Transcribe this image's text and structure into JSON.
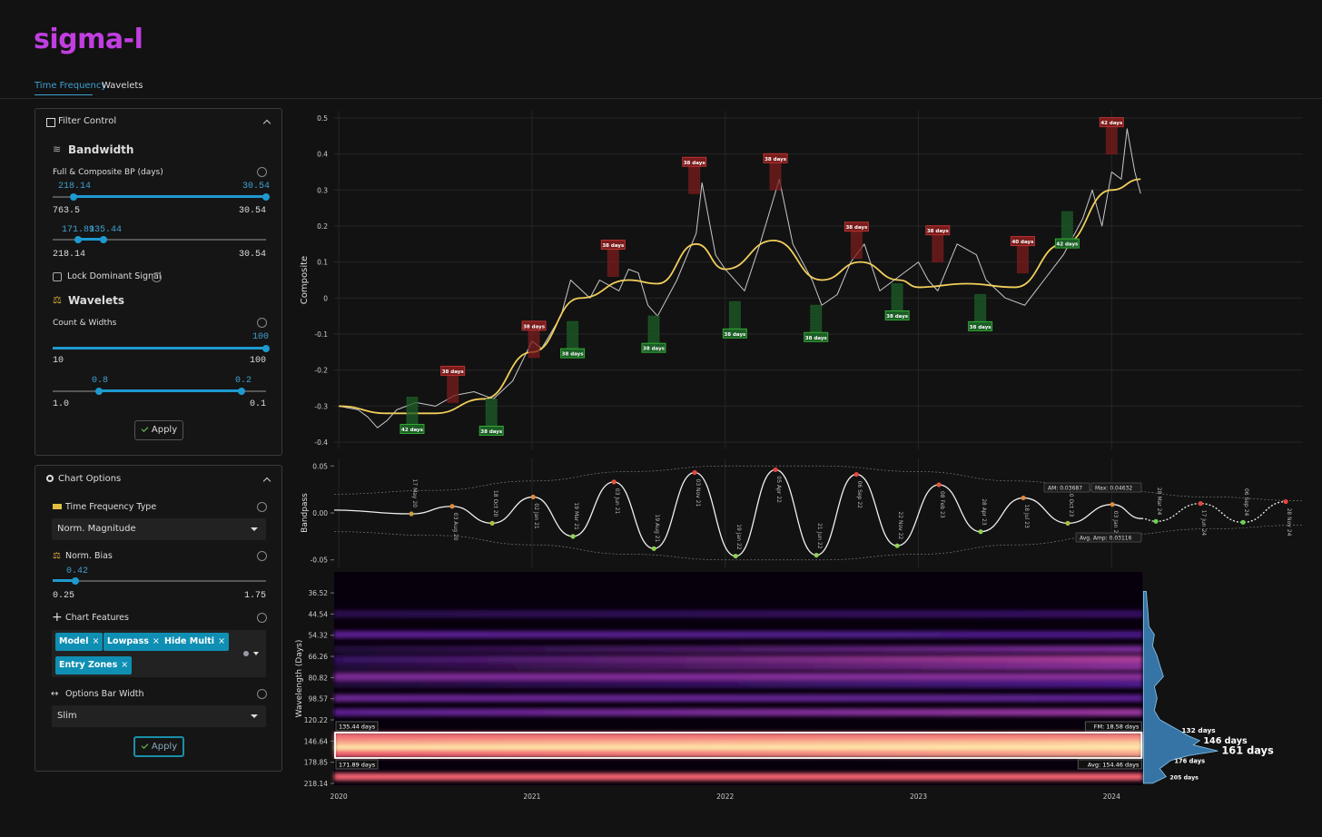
{
  "header": {
    "title": "sigma-l",
    "tabs": [
      "Time Frequency",
      "Wavelets"
    ]
  },
  "filter_control": {
    "title": "Filter Control",
    "bandwidth": {
      "heading": "Bandwidth",
      "label": "Full & Composite BP (days)",
      "slider1": {
        "low": "218.14",
        "high": "30.54",
        "min": "763.5",
        "max": "30.54"
      },
      "slider2": {
        "low": "171.89",
        "high": "135.44",
        "min": "218.14",
        "max": "30.54"
      }
    },
    "lock": "Lock Dominant Signal",
    "wavelets": {
      "heading": "Wavelets",
      "label": "Count & Widths",
      "slider1": {
        "value": "100",
        "min": "10",
        "max": "100"
      },
      "slider2": {
        "low": "0.8",
        "high": "0.2",
        "min": "1.0",
        "max": "0.1"
      }
    },
    "apply": "Apply"
  },
  "chart_options": {
    "title": "Chart Options",
    "tf_type": {
      "label": "Time Frequency Type",
      "value": "Norm. Magnitude"
    },
    "bias": {
      "label": "Norm. Bias",
      "value": "0.42",
      "min": "0.25",
      "max": "1.75"
    },
    "features": {
      "label": "Chart Features",
      "tags": [
        "Model",
        "Lowpass",
        "Hide Multi",
        "Entry Zones"
      ]
    },
    "bar_width": {
      "label": "Options Bar Width",
      "value": "Slim"
    },
    "apply": "Apply"
  },
  "chart_data": [
    {
      "type": "line",
      "ylabel": "Composite",
      "xlim": [
        2019.976,
        2024.99
      ],
      "ylim": [
        -0.42,
        0.52
      ],
      "yticks": [
        0.5,
        0.4,
        0.3,
        0.2,
        0.1,
        0,
        -0.1,
        -0.2,
        -0.3,
        -0.4
      ],
      "xticks": [
        2020,
        2021,
        2022,
        2023,
        2024
      ],
      "series": [
        {
          "color": "#c8c8c8",
          "x": [
            2020.0,
            2020.1,
            2020.15,
            2020.2,
            2020.25,
            2020.3,
            2020.4,
            2020.5,
            2020.6,
            2020.7,
            2020.8,
            2020.9,
            2021.0,
            2021.05,
            2021.15,
            2021.2,
            2021.3,
            2021.35,
            2021.45,
            2021.5,
            2021.55,
            2021.6,
            2021.65,
            2021.75,
            2021.85,
            2021.88,
            2021.95,
            2022.0,
            2022.1,
            2022.18,
            2022.28,
            2022.35,
            2022.45,
            2022.5,
            2022.58,
            2022.65,
            2022.72,
            2022.8,
            2022.9,
            2023.0,
            2023.05,
            2023.1,
            2023.2,
            2023.3,
            2023.35,
            2023.45,
            2023.55,
            2023.65,
            2023.75,
            2023.85,
            2023.9,
            2023.95,
            2024.0,
            2024.05,
            2024.08,
            2024.12,
            2024.15
          ],
          "values": [
            -0.3,
            -0.31,
            -0.33,
            -0.36,
            -0.34,
            -0.31,
            -0.29,
            -0.3,
            -0.27,
            -0.26,
            -0.28,
            -0.23,
            -0.12,
            -0.14,
            -0.05,
            0.05,
            0.0,
            0.05,
            0.02,
            0.08,
            0.07,
            -0.02,
            -0.05,
            0.05,
            0.18,
            0.32,
            0.12,
            0.08,
            0.02,
            0.15,
            0.33,
            0.15,
            0.05,
            -0.02,
            0.01,
            0.1,
            0.15,
            0.02,
            0.06,
            0.1,
            0.05,
            0.02,
            0.15,
            0.12,
            0.05,
            0.0,
            -0.02,
            0.05,
            0.12,
            0.22,
            0.3,
            0.2,
            0.35,
            0.33,
            0.47,
            0.35,
            0.29
          ]
        },
        {
          "color": "#f2cf5b",
          "x": [
            2020.0,
            2020.25,
            2020.5,
            2020.75,
            2021.0,
            2021.25,
            2021.5,
            2021.65,
            2021.85,
            2022.0,
            2022.25,
            2022.5,
            2022.7,
            2022.9,
            2023.0,
            2023.25,
            2023.5,
            2023.75,
            2024.0,
            2024.15
          ],
          "values": [
            -0.3,
            -0.32,
            -0.32,
            -0.28,
            -0.15,
            0.0,
            0.05,
            0.04,
            0.15,
            0.08,
            0.16,
            0.05,
            0.1,
            0.05,
            0.03,
            0.04,
            0.03,
            0.15,
            0.3,
            0.33
          ]
        }
      ],
      "cycles": [
        {
          "x": 2020.59,
          "y": -0.29,
          "label": "38 days",
          "side": "above",
          "color": "#7a1c1c"
        },
        {
          "x": 2021.01,
          "y": -0.165,
          "label": "38 days",
          "side": "above",
          "color": "#7a1c1c"
        },
        {
          "x": 2021.42,
          "y": 0.06,
          "label": "38 days",
          "side": "above",
          "color": "#7a1c1c"
        },
        {
          "x": 2021.84,
          "y": 0.29,
          "label": "38 days",
          "side": "above",
          "color": "#7a1c1c"
        },
        {
          "x": 2022.26,
          "y": 0.3,
          "label": "38 days",
          "side": "above",
          "color": "#7a1c1c"
        },
        {
          "x": 2022.68,
          "y": 0.11,
          "label": "38 days",
          "side": "above",
          "color": "#7a1c1c"
        },
        {
          "x": 2023.1,
          "y": 0.1,
          "label": "38 days",
          "side": "above",
          "color": "#7a1c1c"
        },
        {
          "x": 2023.54,
          "y": 0.07,
          "label": "40 days",
          "side": "above",
          "color": "#7a1c1c"
        },
        {
          "x": 2024.0,
          "y": 0.4,
          "label": "42 days",
          "side": "above",
          "color": "#7a1c1c"
        },
        {
          "x": 2020.38,
          "y": -0.275,
          "label": "42 days",
          "side": "below",
          "color": "#1c5e27"
        },
        {
          "x": 2020.79,
          "y": -0.28,
          "label": "38 days",
          "side": "below",
          "color": "#1c5e27"
        },
        {
          "x": 2021.21,
          "y": -0.065,
          "label": "38 days",
          "side": "below",
          "color": "#1c5e27"
        },
        {
          "x": 2021.63,
          "y": -0.05,
          "label": "38 days",
          "side": "below",
          "color": "#1c5e27"
        },
        {
          "x": 2022.05,
          "y": -0.01,
          "label": "38 days",
          "side": "below",
          "color": "#1c5e27"
        },
        {
          "x": 2022.47,
          "y": -0.02,
          "label": "38 days",
          "side": "below",
          "color": "#1c5e27"
        },
        {
          "x": 2022.89,
          "y": 0.04,
          "label": "38 days",
          "side": "below",
          "color": "#1c5e27"
        },
        {
          "x": 2023.32,
          "y": 0.01,
          "label": "38 days",
          "side": "below",
          "color": "#1c5e27"
        },
        {
          "x": 2023.77,
          "y": 0.24,
          "label": "42 days",
          "side": "below",
          "color": "#1c5e27"
        }
      ]
    },
    {
      "type": "line",
      "ylabel": "Bandpass",
      "xlim": [
        2019.976,
        2024.99
      ],
      "ylim": [
        -0.058,
        0.058
      ],
      "yticks": [
        0.05,
        {
          "value": 0,
          "label": "0.00"
        },
        -0.05
      ],
      "xticks": [
        2020,
        2021,
        2022,
        2023,
        2024
      ],
      "series": [
        {
          "color": "#f0f0f0",
          "dashed": false,
          "x": [
            2019.976,
            2020.376,
            2020.587,
            2020.794,
            2021.006,
            2021.212,
            2021.424,
            2021.631,
            2021.842,
            2022.054,
            2022.26,
            2022.472,
            2022.679,
            2022.89,
            2023.106,
            2023.322,
            2023.543,
            2023.773,
            2024.004,
            2024.154
          ],
          "values": [
            0.003,
            -0.001,
            0.007,
            -0.011,
            0.017,
            -0.025,
            0.033,
            -0.038,
            0.043,
            -0.046,
            0.046,
            -0.045,
            0.041,
            -0.035,
            0.03,
            -0.02,
            0.016,
            -0.011,
            0.009,
            -0.006
          ],
          "date_labels": [
            null,
            "17 May 20",
            "03 Aug 20",
            "18 Oct 20",
            "02 Jan 21",
            "19 Mar 21",
            "03 Jun 21",
            "19 Aug 21",
            "03 Nov 21",
            "19 Jan 22",
            "05 Apr 22",
            "21 Jun 22",
            "06 Sep 22",
            "22 Nov 22",
            "08 Feb 23",
            "28 Apr 23",
            "18 Jul 23",
            "10 Oct 23",
            "03 Jan 24",
            null
          ],
          "point_colors": [
            null,
            "#c9a040",
            "#e08a3c",
            "#a8c040",
            "#e08a3c",
            "#8fd14f",
            "#e8553c",
            "#8fd14f",
            "#e8453c",
            "#8fd14f",
            "#e8453c",
            "#8fd14f",
            "#e8453c",
            "#8fd14f",
            "#e8553c",
            "#8fd14f",
            "#e08a3c",
            "#a8c040",
            "#e08a3c",
            null
          ]
        },
        {
          "color": "#f0f0f0",
          "dashed": true,
          "x": [
            2024.154,
            2024.229,
            2024.46,
            2024.68,
            2024.901
          ],
          "values": [
            -0.006,
            -0.009,
            0.01,
            -0.01,
            0.012
          ],
          "date_labels": [
            null,
            "28 Mar 24",
            "17 Jun 24",
            "06 Sep 24",
            "28 Nov 24"
          ],
          "point_colors": [
            null,
            "#6fd14f",
            "#e8453c",
            "#6fd14f",
            "#e8453c"
          ]
        }
      ],
      "envelope": {
        "x": [
          2019.976,
          2020.5,
          2021.0,
          2021.5,
          2022.0,
          2022.5,
          2023.0,
          2023.5,
          2024.0,
          2024.5,
          2024.99
        ],
        "upper": [
          0.02,
          0.024,
          0.034,
          0.044,
          0.05,
          0.05,
          0.044,
          0.034,
          0.024,
          0.017,
          0.013
        ],
        "lower": [
          -0.02,
          -0.024,
          -0.034,
          -0.044,
          -0.05,
          -0.05,
          -0.044,
          -0.034,
          -0.024,
          -0.017,
          -0.013
        ]
      },
      "annotations": [
        "AM: 0.03687",
        "Max: 0.04632",
        "Avg. Amp: 0.03116"
      ]
    },
    {
      "type": "heatmap",
      "ylabel": "Wavelength (Days)",
      "xlim": [
        2019.976,
        2024.99
      ],
      "xticks": [
        2020,
        2021,
        2022,
        2023,
        2024
      ],
      "x_range": [
        2019.976,
        2024.16
      ],
      "ylog": true,
      "ylim": [
        30,
        222
      ],
      "yticks": [
        36.52,
        44.54,
        54.32,
        66.26,
        80.82,
        98.57,
        120.22,
        146.64,
        178.85,
        218.14
      ],
      "bands": [
        {
          "wavelength": 44.5,
          "intensity": [
            0.15,
            0.2
          ]
        },
        {
          "wavelength": 54,
          "intensity": [
            0.35,
            0.28
          ]
        },
        {
          "wavelength": 62,
          "intensity": [
            0.1,
            0.45
          ]
        },
        {
          "wavelength": 68,
          "intensity": [
            0.2,
            0.62
          ]
        },
        {
          "wavelength": 73,
          "intensity": [
            0.1,
            0.5
          ]
        },
        {
          "wavelength": 80,
          "intensity": [
            0.45,
            0.5
          ]
        },
        {
          "wavelength": 86,
          "intensity": [
            0.1,
            0.3
          ]
        },
        {
          "wavelength": 98,
          "intensity": [
            0.4,
            0.35
          ]
        },
        {
          "wavelength": 112,
          "intensity": [
            0.35,
            0.55
          ]
        },
        {
          "wavelength": 140,
          "intensity": [
            0.82,
            0.85
          ]
        },
        {
          "wavelength": 150,
          "intensity": [
            0.9,
            0.95
          ]
        },
        {
          "wavelength": 158,
          "intensity": [
            1,
            1
          ]
        },
        {
          "wavelength": 165,
          "intensity": [
            0.8,
            0.9
          ]
        },
        {
          "wavelength": 205,
          "intensity": [
            0.8,
            0.8
          ]
        }
      ],
      "selection": {
        "low": {
          "value": 135.44,
          "label": "135.44 days"
        },
        "high": {
          "value": 171.89,
          "label": "171.89 days"
        },
        "fm": "FM: 18.58 days",
        "avg": "Avg: 154.46 days"
      },
      "histogram": {
        "wavelengths": [
          36,
          44,
          50,
          54,
          60,
          66,
          72,
          80,
          88,
          98,
          110,
          120,
          132,
          140,
          146,
          152,
          161,
          168,
          176,
          190,
          205,
          218
        ],
        "amplitudes": [
          0.03,
          0.05,
          0.06,
          0.12,
          0.1,
          0.15,
          0.18,
          0.22,
          0.12,
          0.15,
          0.12,
          0.18,
          0.38,
          0.5,
          0.62,
          0.55,
          0.82,
          0.5,
          0.3,
          0.18,
          0.25,
          0.1
        ],
        "labels": [
          {
            "wavelength": 132,
            "label": "132 days"
          },
          {
            "wavelength": 146,
            "label": "146 days"
          },
          {
            "wavelength": 161,
            "label": "161 days"
          },
          {
            "wavelength": 176,
            "label": "176 days"
          },
          {
            "wavelength": 205,
            "label": "205 days"
          }
        ]
      }
    }
  ]
}
